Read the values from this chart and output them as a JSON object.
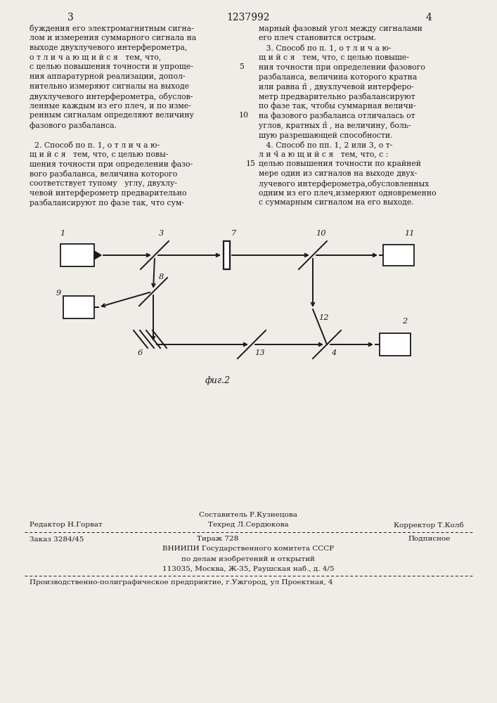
{
  "page_number_left": "3",
  "page_number_center": "1237992",
  "page_number_right": "4",
  "bg_color": "#f0ede8",
  "text_color": "#1a1a1a",
  "col1_lines": [
    "буждения его электромагнитным сигна-",
    "лом и измерения суммарного сигнала на",
    "выходе двухлучевого интерферометра,  ",
    "о т л и ч а ю щ и й с я   тем, что,",
    "с целью повышения точности и упроще-",
    "ния аппаратурной реализации, допол-",
    "нительно измеряют сигналы на выходе",
    "двухлучевого интерферометра, обуслов-",
    "ленные каждым из его плеч, и по изме-",
    "ренным сигналам определяют величину",
    "фазового разбаланса.",
    "",
    "  2. Способ по п. 1, о т л и ч а ю-",
    "щ и й с я   тем, что, с целью повы-",
    "шения точности при определении фазо-",
    "вого разбаланса, величина которого",
    "соответствует тупому   углу, двухлу-",
    "чевой интерферометр предварительно",
    "разбалансируют по фазе так, что сум-"
  ],
  "col1_linenums": {
    "4": "5",
    "9": "10"
  },
  "col2_lines": [
    "марный фазовый угол между сигналами",
    "его плеч становится острым.",
    "   3. Способ по п. 1, о т л и ч а ю-",
    "щ и й с я   тем, что, с целью повыше-",
    "ния точности при определении фазового",
    "разбаланса, величина которого кратна",
    "или равна π̂ , двухлучевой интерферо-",
    "метр предварительно разбалансируют",
    "по фазе так, чтобы суммарная величи-",
    "на фазового разбаланса отличалась от",
    "углов, кратных π̂ , на величину, боль-",
    "шую разрешающей способности.",
    "   4. Способ по пп. 1, 2 или 3, о т-",
    "л и ч̆ а ю щ и й с я   тем, что, с :",
    "целью повышения точности по крайней",
    "мере один из сигналов на выходе двух-",
    "лучевого интерферометра,обусловленных",
    "одним из его плеч,измеряют одновременно",
    "с суммарным сигналом на его выходе."
  ],
  "col2_linenums": {
    "14": "15"
  },
  "fig_caption": "фиг.2",
  "footer_composer": "Составитель Р.Кузнецова",
  "footer_editor": "Редактор Н.Горват",
  "footer_techred": "Техред Л.Сердюкова",
  "footer_corrector": "Корректор Т.Колб",
  "footer_order": "Заказ 3284/45",
  "footer_tirazh": "Тираж 728",
  "footer_podpisnoe": "Подписное",
  "footer_vniippi": "ВНИИПИ Государственного комитета СССР",
  "footer_po_delam": "по делам изобретений и открытий",
  "footer_address": "113035, Москва, Ж-35, Раушская наб., д. 4/5",
  "footer_factory": "Производственно-полиграфическое предприятие, г.Ужгород, ул Проектная, 4"
}
